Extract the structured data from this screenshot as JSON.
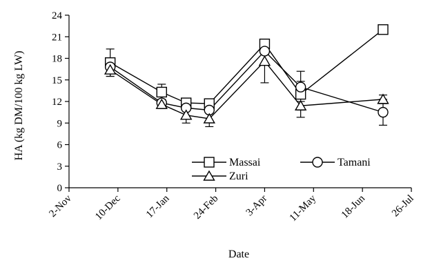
{
  "chart_data": {
    "type": "line",
    "xlabel": "Date",
    "ylabel": "HA (kg DM/100 kg LW)",
    "ylim": [
      0,
      24
    ],
    "yticks": [
      0,
      3,
      6,
      9,
      12,
      15,
      18,
      21,
      24
    ],
    "xlim": [
      "2-Nov",
      "26-Jul"
    ],
    "xtick_labels": [
      "2-Nov",
      "10-Dec",
      "17-Jan",
      "24-Feb",
      "3-Apr",
      "11-May",
      "18-Jun",
      "26-Jul"
    ],
    "grid": false,
    "legend_position": "center-right",
    "series": [
      {
        "name": "Massai",
        "marker": "square",
        "x": [
          "4-Dec",
          "13-Jan",
          "1-Feb",
          "19-Feb",
          "3-Apr",
          "1-May",
          "4-Jul"
        ],
        "y": [
          17.4,
          13.3,
          11.8,
          11.7,
          20.0,
          13.0,
          22.0
        ],
        "error": [
          1.9,
          1.1,
          0.4,
          0.4,
          0.6,
          3.2,
          0.4
        ]
      },
      {
        "name": "Tamani",
        "marker": "circle",
        "x": [
          "4-Dec",
          "13-Jan",
          "1-Feb",
          "19-Feb",
          "3-Apr",
          "1-May",
          "4-Jul"
        ],
        "y": [
          16.8,
          11.8,
          11.1,
          10.8,
          19.0,
          14.0,
          10.5
        ],
        "error": [
          0.9,
          0.5,
          0.4,
          0.3,
          0.4,
          0.8,
          1.8
        ]
      },
      {
        "name": "Zuri",
        "marker": "triangle",
        "x": [
          "4-Dec",
          "13-Jan",
          "1-Feb",
          "19-Feb",
          "3-Apr",
          "1-May",
          "4-Jul"
        ],
        "y": [
          16.4,
          11.6,
          10.1,
          9.6,
          17.6,
          11.4,
          12.3
        ],
        "error": [
          0.9,
          0.6,
          1.1,
          1.1,
          3.0,
          0.6,
          0.6
        ]
      }
    ]
  }
}
